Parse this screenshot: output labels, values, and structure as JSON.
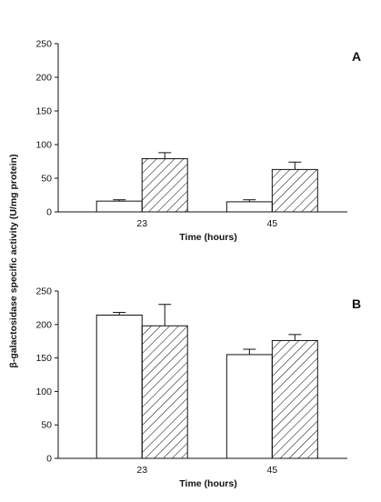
{
  "ylabel": "β-galactosidase specific activity (U/mg protein)",
  "chart_data": [
    {
      "type": "bar",
      "panel_label": "A",
      "xlabel": "Time (hours)",
      "ylabel": "β-galactosidase specific activity (U/mg protein)",
      "categories": [
        "23",
        "45"
      ],
      "ylim": [
        0,
        250
      ],
      "yticks": [
        0,
        50,
        100,
        150,
        200,
        250
      ],
      "series": [
        {
          "style": "open",
          "values": [
            16,
            15
          ],
          "errors": [
            2,
            3
          ]
        },
        {
          "style": "hatched",
          "values": [
            79,
            63
          ],
          "errors": [
            9,
            11
          ]
        }
      ]
    },
    {
      "type": "bar",
      "panel_label": "B",
      "xlabel": "Time (hours)",
      "ylabel": "β-galactosidase specific activity (U/mg protein)",
      "categories": [
        "23",
        "45"
      ],
      "ylim": [
        0,
        250
      ],
      "yticks": [
        0,
        50,
        100,
        150,
        200,
        250
      ],
      "series": [
        {
          "style": "open",
          "values": [
            214,
            155
          ],
          "errors": [
            4,
            8
          ]
        },
        {
          "style": "hatched",
          "values": [
            198,
            176
          ],
          "errors": [
            32,
            9
          ]
        }
      ]
    }
  ]
}
